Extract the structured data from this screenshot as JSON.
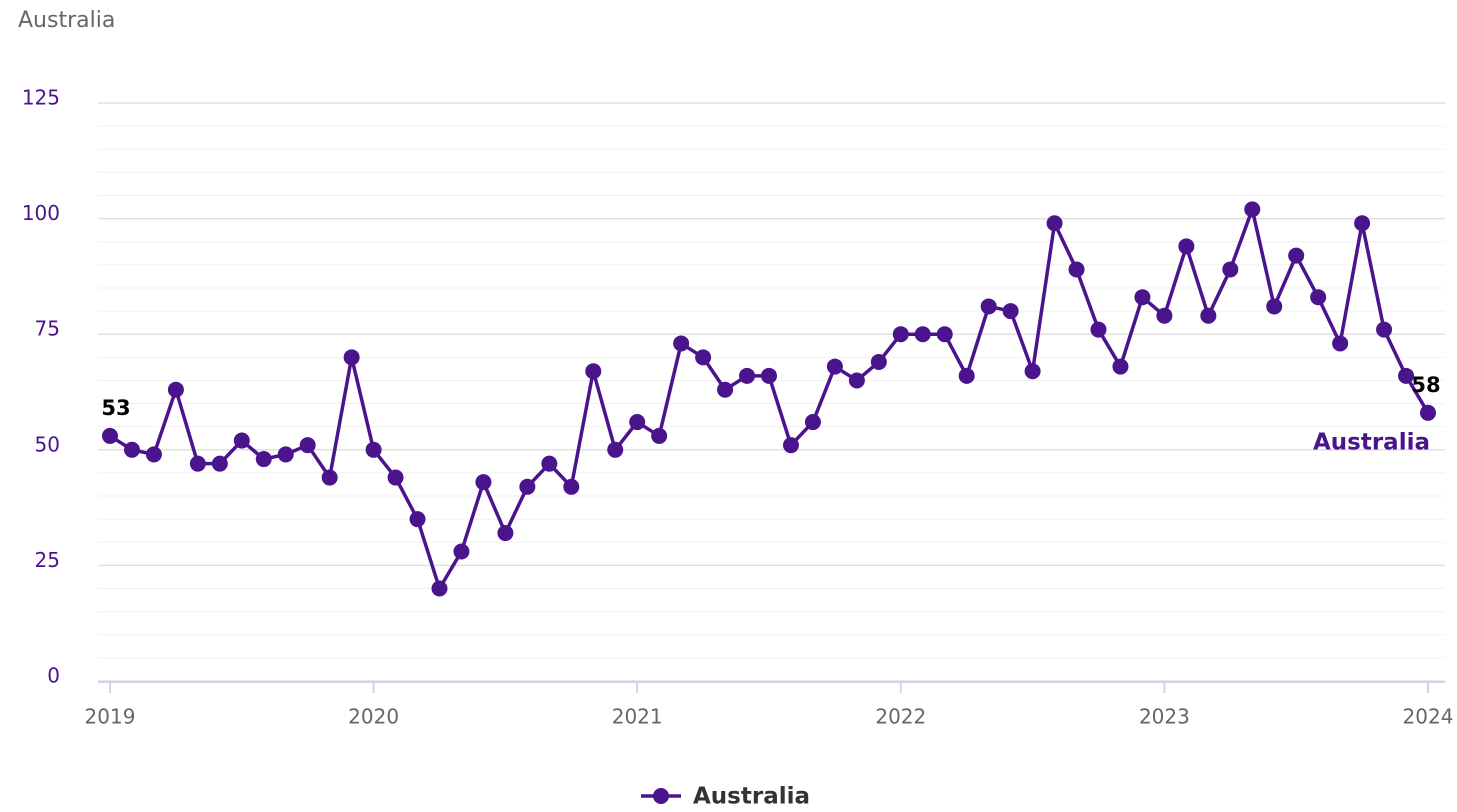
{
  "chart_data": {
    "type": "line",
    "title": "Australia",
    "categories": [
      "2019",
      null,
      null,
      null,
      null,
      null,
      null,
      null,
      null,
      null,
      null,
      null,
      "2020",
      null,
      null,
      null,
      null,
      null,
      null,
      null,
      null,
      null,
      null,
      null,
      "2021",
      null,
      null,
      null,
      null,
      null,
      null,
      null,
      null,
      null,
      null,
      null,
      "2022",
      null,
      null,
      null,
      null,
      null,
      null,
      null,
      null,
      null,
      null,
      null,
      "2023",
      null,
      null,
      null,
      null,
      null,
      null,
      null,
      null,
      null,
      null,
      null,
      "2024"
    ],
    "series": [
      {
        "name": "Australia",
        "color": "#4a148c",
        "values": [
          53,
          50,
          49,
          63,
          47,
          47,
          52,
          48,
          49,
          51,
          44,
          70,
          50,
          44,
          35,
          20,
          28,
          43,
          32,
          42,
          47,
          42,
          67,
          50,
          56,
          53,
          73,
          70,
          63,
          66,
          66,
          51,
          56,
          68,
          65,
          69,
          75,
          75,
          75,
          66,
          81,
          80,
          67,
          99,
          89,
          76,
          68,
          83,
          79,
          94,
          79,
          89,
          102,
          81,
          92,
          83,
          73,
          99,
          76,
          66,
          58
        ]
      }
    ],
    "ylim": [
      0,
      125
    ],
    "yticks": [
      0,
      25,
      50,
      75,
      100,
      125
    ],
    "yminor": 5,
    "grid": true
  }
}
